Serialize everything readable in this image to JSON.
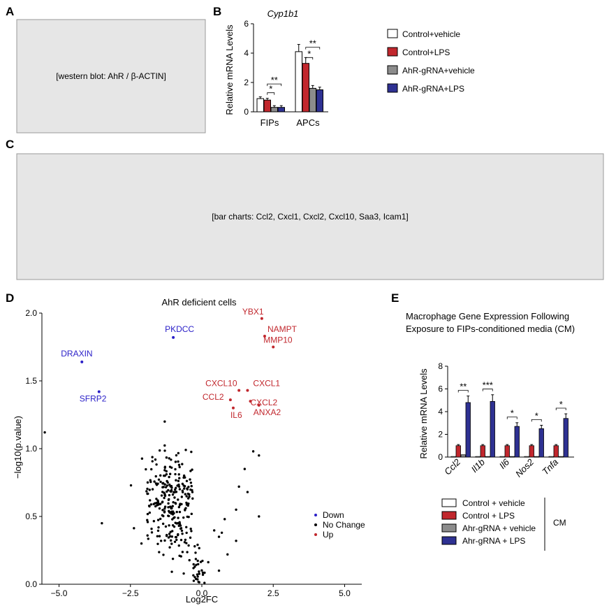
{
  "figure": {
    "panel_letters": [
      "A",
      "B",
      "C",
      "D",
      "E"
    ]
  },
  "colors": {
    "vehicle": "#ffffff",
    "lps": "#c1272d",
    "ahr_vehicle": "#8c8c8c",
    "ahr_lps": "#2e3192",
    "down": "#2b20c8",
    "nochange": "#000000",
    "up": "#c1272d"
  },
  "chart_data": [
    {
      "id": "panel-B",
      "type": "bar",
      "title": "Cyp1b1",
      "ylabel": "Relative mRNA Levels",
      "ylim": [
        0,
        6
      ],
      "yticks": [
        "0",
        "2",
        "4",
        "6"
      ],
      "categories": [
        "FIPs",
        "APCs"
      ],
      "series": [
        {
          "name": "Control+vehicle",
          "values": [
            0.9,
            4.1
          ]
        },
        {
          "name": "Control+LPS",
          "values": [
            0.8,
            3.3
          ]
        },
        {
          "name": "AhR-gRNA+vehicle",
          "values": [
            0.3,
            1.6
          ]
        },
        {
          "name": "AhR-gRNA+LPS",
          "values": [
            0.3,
            1.5
          ]
        }
      ],
      "significance": [
        "*",
        "**",
        "*",
        "**"
      ]
    },
    {
      "id": "panel-D",
      "type": "scatter",
      "title": "AhR deficient cells",
      "xlabel": "Log2FC",
      "ylabel": "−log10(p.value)",
      "xlim": [
        -5.6,
        5.6
      ],
      "ylim": [
        0,
        2.0
      ],
      "xticks": [
        "−5.0",
        "−2.5",
        "0.0",
        "2.5",
        "5.0"
      ],
      "yticks": [
        "0.0",
        "0.5",
        "1.0",
        "1.5",
        "2.0"
      ],
      "legend": [
        "Down",
        "No Change",
        "Up"
      ],
      "labeled_points": [
        {
          "label": "PKDCC",
          "x": -1.0,
          "y": 1.82,
          "group": "down"
        },
        {
          "label": "DRAXIN",
          "x": -4.2,
          "y": 1.64,
          "group": "down"
        },
        {
          "label": "SFRP2",
          "x": -3.6,
          "y": 1.42,
          "group": "down"
        },
        {
          "label": "YBX1",
          "x": 2.1,
          "y": 1.96,
          "group": "up"
        },
        {
          "label": "NAMPT",
          "x": 2.2,
          "y": 1.83,
          "group": "up"
        },
        {
          "label": "MMP10",
          "x": 2.5,
          "y": 1.75,
          "group": "up"
        },
        {
          "label": "CXCL10",
          "x": 1.3,
          "y": 1.43,
          "group": "up"
        },
        {
          "label": "CXCL1",
          "x": 1.6,
          "y": 1.43,
          "group": "up"
        },
        {
          "label": "CCL2",
          "x": 1.0,
          "y": 1.36,
          "group": "up"
        },
        {
          "label": "CXCL2",
          "x": 1.7,
          "y": 1.35,
          "group": "up"
        },
        {
          "label": "IL6",
          "x": 1.1,
          "y": 1.3,
          "group": "up"
        },
        {
          "label": "ANXA2",
          "x": 2.0,
          "y": 1.32,
          "group": "up"
        }
      ]
    },
    {
      "id": "panel-E",
      "type": "bar",
      "title_line1": "Macrophage Gene Expression Following",
      "title_line2": "Exposure to FIPs-conditioned media (CM)",
      "ylabel": "Relative mRNA Levels",
      "ylim": [
        0,
        8
      ],
      "yticks": [
        "0",
        "2",
        "4",
        "6",
        "8"
      ],
      "categories": [
        "Ccl2",
        "Il1b",
        "Il6",
        "Nos2",
        "Tnfa"
      ],
      "series": [
        {
          "name": "Control + vehicle",
          "values": [
            0.05,
            0.05,
            0.05,
            0.05,
            0.05
          ]
        },
        {
          "name": "Control + LPS",
          "values": [
            1.0,
            1.0,
            1.0,
            1.0,
            1.0
          ]
        },
        {
          "name": "Ahr-gRNA + vehicle",
          "values": [
            0.2,
            0.05,
            0.05,
            0.05,
            0.05
          ]
        },
        {
          "name": "Ahr-gRNA + LPS",
          "values": [
            4.8,
            4.9,
            2.7,
            2.5,
            3.4
          ]
        }
      ],
      "significance": [
        "**",
        "***",
        "*",
        "*",
        "*"
      ],
      "legend_group_label": "CM"
    }
  ],
  "placeholders": {
    "panel_A": "[western blot: AhR / β-ACTIN]",
    "panel_C": "[bar charts: Ccl2, Cxcl1, Cxcl2, Cxcl10, Saa3, Icam1]"
  }
}
